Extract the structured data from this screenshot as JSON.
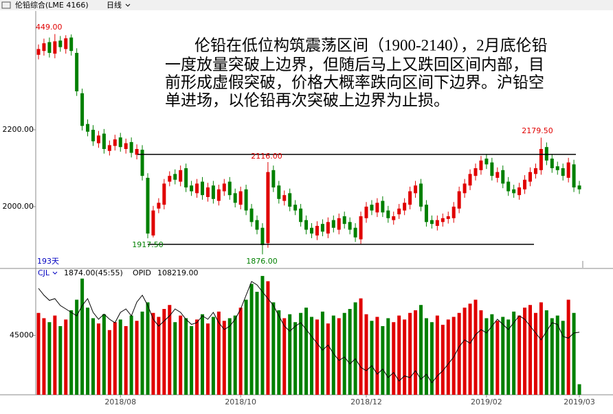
{
  "header": {
    "title": "伦铅综合(LME 4166)",
    "period": "日线"
  },
  "chart_data": [
    {
      "type": "candlestick",
      "open": [
        2395,
        2405,
        2428,
        2398,
        2432,
        2410,
        2440,
        2400,
        2295,
        2215,
        2200,
        2165,
        2190,
        2145,
        2158,
        2180,
        2150,
        2168,
        2135,
        2148,
        2075,
        1925,
        1995,
        2005,
        2065,
        2085,
        2065,
        2100,
        2055,
        2035,
        2065,
        2025,
        2055,
        2015,
        2040,
        2065,
        2035,
        2005,
        2045,
        1995,
        1965,
        1945,
        1905,
        2095,
        2055,
        2015,
        2035,
        2005,
        1995,
        1965,
        1945,
        1925,
        1955,
        1930,
        1965,
        1940,
        1975,
        1960,
        1945,
        1915,
        1970,
        2005,
        1985,
        2015,
        1990,
        1965,
        1980,
        1990,
        2005,
        2035,
        2060,
        2005,
        1965,
        1950,
        1960,
        1968,
        1970,
        1995,
        2035,
        2055,
        2080,
        2095,
        2125,
        2115,
        2075,
        2095,
        2065,
        2045,
        2030,
        2045,
        2065,
        2085,
        2095,
        2155,
        2125,
        2105,
        2100,
        2075,
        2110,
        2055
      ],
      "high": [
        2422,
        2437,
        2440,
        2449,
        2444,
        2446,
        2448,
        2412,
        2307,
        2227,
        2212,
        2197,
        2202,
        2172,
        2187,
        2192,
        2177,
        2180,
        2162,
        2160,
        2087,
        2002,
        2022,
        2072,
        2092,
        2097,
        2107,
        2112,
        2067,
        2072,
        2077,
        2062,
        2067,
        2057,
        2072,
        2077,
        2047,
        2052,
        2057,
        2007,
        1977,
        1957,
        2116,
        2107,
        2067,
        2042,
        2047,
        2017,
        2007,
        1977,
        1957,
        1962,
        1967,
        1972,
        1977,
        1982,
        1987,
        1972,
        1957,
        1987,
        2012,
        2017,
        2022,
        2027,
        2002,
        1987,
        2007,
        2022,
        2052,
        2067,
        2072,
        2017,
        1977,
        1977,
        1982,
        1987,
        2012,
        2052,
        2072,
        2097,
        2112,
        2132,
        2137,
        2127,
        2102,
        2107,
        2077,
        2057,
        2062,
        2082,
        2102,
        2112,
        2179.5,
        2167,
        2137,
        2117,
        2112,
        2127,
        2122,
        2067
      ],
      "low": [
        2383,
        2393,
        2388,
        2386,
        2403,
        2398,
        2393,
        2288,
        2198,
        2183,
        2158,
        2153,
        2138,
        2133,
        2146,
        2143,
        2138,
        2128,
        2123,
        2068,
        1917.5,
        1920,
        1983,
        1993,
        2053,
        2058,
        2053,
        2038,
        2028,
        2023,
        2018,
        2013,
        2008,
        2003,
        2028,
        2018,
        1998,
        1993,
        1978,
        1948,
        1928,
        1876,
        1893,
        2038,
        2008,
        2003,
        1988,
        1978,
        1948,
        1928,
        1918,
        1913,
        1923,
        1918,
        1933,
        1928,
        1943,
        1928,
        1908,
        1903,
        1958,
        1978,
        1973,
        1973,
        1958,
        1953,
        1968,
        1978,
        1993,
        2023,
        1988,
        1948,
        1943,
        1938,
        1948,
        1956,
        1958,
        1983,
        2023,
        2043,
        2068,
        2083,
        2098,
        2068,
        2063,
        2048,
        2028,
        2023,
        2018,
        2033,
        2053,
        2073,
        2083,
        2108,
        2088,
        2083,
        2068,
        2063,
        2038,
        2033
      ],
      "close": [
        2410,
        2425,
        2400,
        2430,
        2415,
        2438,
        2405,
        2300,
        2210,
        2195,
        2170,
        2185,
        2150,
        2160,
        2175,
        2155,
        2165,
        2140,
        2150,
        2080,
        1930,
        1990,
        2010,
        2060,
        2080,
        2070,
        2095,
        2050,
        2040,
        2060,
        2030,
        2050,
        2020,
        2045,
        2060,
        2030,
        2010,
        2040,
        1990,
        1960,
        1940,
        1900,
        2090,
        2050,
        2020,
        2030,
        2000,
        1990,
        1960,
        1940,
        1930,
        1950,
        1935,
        1960,
        1945,
        1970,
        1955,
        1940,
        1920,
        1975,
        2000,
        1990,
        2010,
        1985,
        1970,
        1975,
        1995,
        2010,
        2040,
        2055,
        2000,
        1960,
        1955,
        1965,
        1970,
        1975,
        2000,
        2040,
        2060,
        2085,
        2100,
        2120,
        2110,
        2080,
        2090,
        2060,
        2040,
        2035,
        2050,
        2070,
        2090,
        2100,
        2150,
        2120,
        2100,
        2095,
        2080,
        2115,
        2050,
        2045
      ],
      "up_color": "#e00000",
      "down_color": "#008000",
      "ylim": [
        1841,
        2509
      ],
      "yticks": [
        {
          "value": 2000,
          "label": "2000.00"
        },
        {
          "value": 2200,
          "label": "2200.00"
        }
      ],
      "price_labels": [
        "449.00",
        "2116.00",
        "1917.50",
        "1876.00",
        "2179.50"
      ],
      "range_lines": [
        2136,
        1902
      ],
      "days_label": "193天",
      "annotation": [
        "伦铅在低位构筑震荡区间（1900-2140），2月底伦铅",
        "一度放量突破上边界，但随后马上又跌回区间内部，目",
        "前形成虚假突破，价格大概率跌向区间下边界。沪铅空",
        "单进场，以伦铅再次突破上边界为止损。"
      ]
    },
    {
      "type": "bar",
      "categories": [
        null,
        null,
        null,
        null,
        null,
        null,
        null,
        null,
        null,
        null,
        null,
        null,
        null,
        null,
        null,
        "2018/08",
        null,
        null,
        null,
        null,
        null,
        null,
        null,
        null,
        null,
        null,
        null,
        null,
        null,
        null,
        null,
        null,
        null,
        null,
        null,
        null,
        null,
        "2018/10",
        null,
        null,
        null,
        null,
        null,
        null,
        null,
        null,
        null,
        null,
        null,
        null,
        null,
        null,
        null,
        null,
        null,
        null,
        null,
        null,
        null,
        null,
        "2018/12",
        null,
        null,
        null,
        null,
        null,
        null,
        null,
        null,
        null,
        null,
        null,
        null,
        null,
        null,
        null,
        null,
        null,
        null,
        null,
        null,
        null,
        "2019/02",
        null,
        null,
        null,
        null,
        null,
        null,
        null,
        null,
        null,
        null,
        null,
        null,
        null,
        null,
        null,
        null,
        "2019/03"
      ],
      "series": [
        {
          "name": "CJL",
          "values": [
            62000,
            58000,
            55000,
            60000,
            52000,
            57000,
            64000,
            72000,
            88000,
            66000,
            58000,
            54000,
            61000,
            49000,
            55000,
            57000,
            52000,
            60000,
            56000,
            63000,
            70000,
            62000,
            59000,
            65000,
            68000,
            55000,
            60000,
            58000,
            52000,
            57000,
            61000,
            54000,
            59000,
            63000,
            56000,
            58000,
            60000,
            66000,
            72000,
            84000,
            78000,
            90000,
            86000,
            70000,
            64000,
            58000,
            61000,
            55000,
            62000,
            66000,
            59000,
            57000,
            63000,
            54000,
            60000,
            58000,
            62000,
            65000,
            70000,
            73000,
            61000,
            56000,
            59000,
            52000,
            58000,
            55000,
            60000,
            57000,
            62000,
            64000,
            68000,
            58000,
            55000,
            60000,
            53000,
            57000,
            59000,
            62000,
            66000,
            69000,
            72000,
            64000,
            58000,
            61000,
            56000,
            59000,
            57000,
            63000,
            60000,
            66000,
            68000,
            62000,
            70000,
            64000,
            58000,
            60000,
            56000,
            72000,
            62000,
            8000
          ]
        },
        {
          "name": "OPID",
          "axis": "y2",
          "color": "#000000",
          "values": [
            121000,
            119000,
            117500,
            118000,
            116000,
            115000,
            114000,
            113000,
            116000,
            118000,
            114000,
            112000,
            113500,
            112000,
            111000,
            114000,
            115000,
            113000,
            117000,
            119000,
            116000,
            112000,
            110000,
            111500,
            113000,
            115000,
            114000,
            112000,
            110500,
            111000,
            113000,
            112000,
            114000,
            111000,
            109000,
            110000,
            112000,
            115000,
            119000,
            123000,
            122000,
            120000,
            118000,
            116000,
            113000,
            110000,
            108500,
            110000,
            111000,
            109000,
            107000,
            105000,
            103000,
            104500,
            102000,
            100000,
            101000,
            99000,
            100500,
            98000,
            97000,
            98500,
            96000,
            97500,
            95000,
            96500,
            94000,
            95500,
            95000,
            97000,
            94500,
            96000,
            93500,
            95500,
            97000,
            99000,
            101000,
            104000,
            106000,
            105000,
            107500,
            109000,
            108000,
            110000,
            112000,
            110500,
            109000,
            111000,
            113000,
            112000,
            110000,
            108000,
            106000,
            108500,
            111000,
            110500,
            107000,
            106500,
            108000,
            108219
          ]
        }
      ],
      "info": [
        "1874.00(45:55)",
        "108219.00"
      ],
      "ylim": [
        0,
        91000
      ],
      "yticks": [
        45000
      ],
      "y2lim": [
        90000,
        125000
      ]
    }
  ]
}
